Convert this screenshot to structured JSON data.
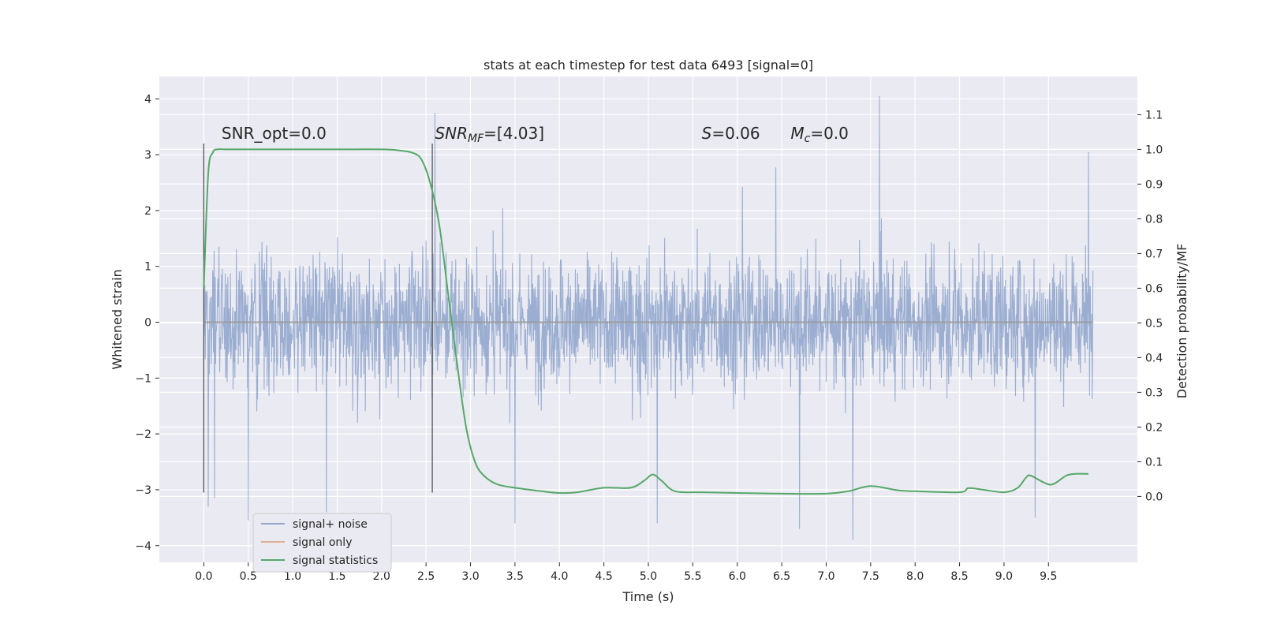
{
  "chart_data": {
    "type": "line",
    "title": "stats at each timestep for test data 6493 [signal=0]",
    "xlabel": "Time (s)",
    "ylabel": "Whitened strain",
    "y2label": "Detection probability/MF",
    "xlim": [
      -0.5,
      10.5
    ],
    "ylim": [
      -4.3,
      4.4
    ],
    "y2lim": [
      -0.19,
      1.21
    ],
    "xticks": [
      "0.0",
      "0.5",
      "1.0",
      "1.5",
      "2.0",
      "2.5",
      "3.0",
      "3.5",
      "4.0",
      "4.5",
      "5.0",
      "5.5",
      "6.0",
      "6.5",
      "7.0",
      "7.5",
      "8.0",
      "8.5",
      "9.0",
      "9.5"
    ],
    "yticks": [
      4,
      3,
      2,
      1,
      0,
      -1,
      -2,
      -3,
      -4
    ],
    "y2ticks": [
      1.1,
      1.0,
      0.9,
      0.8,
      0.7,
      0.6,
      0.5,
      0.4,
      0.3,
      0.2,
      0.1,
      0.0
    ],
    "grid": true,
    "legend_position": "lower-left",
    "series": [
      {
        "name": "signal+ noise",
        "color": "#4c72b0",
        "axis": "left",
        "x_range": [
          0.0,
          10.0
        ],
        "typical_band": [
          -1.6,
          1.6
        ],
        "extremes": [
          {
            "x": 0.05,
            "y": -3.3
          },
          {
            "x": 0.12,
            "y": -3.15
          },
          {
            "x": 0.5,
            "y": -3.55
          },
          {
            "x": 1.38,
            "y": -3.4
          },
          {
            "x": 2.6,
            "y": 3.75
          },
          {
            "x": 3.5,
            "y": -3.6
          },
          {
            "x": 5.1,
            "y": -3.6
          },
          {
            "x": 6.7,
            "y": -3.7
          },
          {
            "x": 7.3,
            "y": -3.9
          },
          {
            "x": 7.6,
            "y": 4.05
          },
          {
            "x": 9.35,
            "y": -3.5
          },
          {
            "x": 9.95,
            "y": 3.05
          }
        ]
      },
      {
        "name": "signal only",
        "color": "#dd8452",
        "axis": "left",
        "x": [
          0.0,
          10.0
        ],
        "y": [
          0.0,
          0.0
        ]
      },
      {
        "name": "signal statistics",
        "color": "#55a868",
        "axis": "right",
        "x": [
          0.0,
          0.05,
          0.1,
          0.15,
          0.25,
          0.5,
          1.0,
          1.5,
          2.0,
          2.2,
          2.35,
          2.45,
          2.55,
          2.65,
          2.75,
          2.85,
          2.95,
          3.05,
          3.15,
          3.3,
          3.5,
          3.8,
          4.0,
          4.2,
          4.5,
          4.8,
          4.95,
          5.05,
          5.15,
          5.3,
          5.6,
          6.0,
          6.5,
          7.0,
          7.25,
          7.5,
          7.8,
          8.0,
          8.5,
          8.6,
          8.75,
          9.0,
          9.15,
          9.25,
          9.3,
          9.45,
          9.55,
          9.7,
          9.8,
          9.95
        ],
        "y": [
          0.6,
          0.93,
          0.99,
          1.0,
          1.0,
          1.0,
          1.0,
          1.0,
          1.0,
          0.997,
          0.99,
          0.97,
          0.9,
          0.78,
          0.58,
          0.38,
          0.2,
          0.1,
          0.06,
          0.035,
          0.025,
          0.015,
          0.01,
          0.012,
          0.025,
          0.025,
          0.045,
          0.063,
          0.045,
          0.015,
          0.012,
          0.01,
          0.008,
          0.008,
          0.015,
          0.03,
          0.018,
          0.015,
          0.012,
          0.024,
          0.02,
          0.012,
          0.024,
          0.055,
          0.06,
          0.04,
          0.035,
          0.06,
          0.065,
          0.065
        ]
      }
    ],
    "vlines": [
      {
        "x": 0.0,
        "y": [
          -3.05,
          3.2
        ]
      },
      {
        "x": 2.57,
        "y": [
          -3.05,
          3.2
        ]
      }
    ],
    "annotations": [
      {
        "id": "snr-opt",
        "x": 0.2,
        "y": 3.2,
        "parts": [
          {
            "t": "SNR_opt=0.0",
            "style": "normal"
          }
        ]
      },
      {
        "id": "snr-mf",
        "x": 2.6,
        "y": 3.2,
        "parts": [
          {
            "t": "SNR",
            "style": "italic"
          },
          {
            "t": "MF",
            "style": "italic-sub"
          },
          {
            "t": "=[4.03]",
            "style": "normal"
          }
        ]
      },
      {
        "id": "s-value",
        "x": 5.6,
        "y": 3.2,
        "parts": [
          {
            "t": "S",
            "style": "italic"
          },
          {
            "t": "=0.06",
            "style": "normal"
          }
        ]
      },
      {
        "id": "mc-value",
        "x": 6.6,
        "y": 3.2,
        "parts": [
          {
            "t": "M",
            "style": "italic"
          },
          {
            "t": "c",
            "style": "italic-sub"
          },
          {
            "t": "=0.0",
            "style": "normal"
          }
        ]
      }
    ]
  }
}
